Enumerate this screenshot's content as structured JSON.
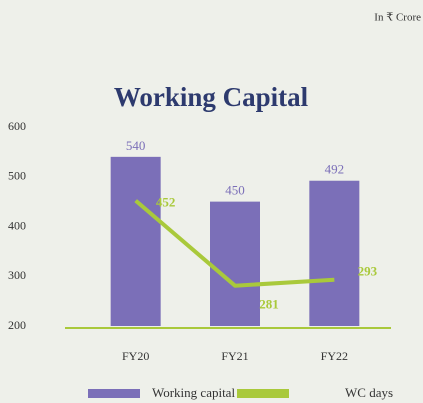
{
  "chart_data": {
    "type": "bar",
    "title": "Working Capital",
    "unit_note": "In ₹ Crore",
    "categories": [
      "FY20",
      "FY21",
      "FY22"
    ],
    "series": [
      {
        "name": "Working capital",
        "type": "bar",
        "color": "#7b6fb8",
        "values": [
          540,
          450,
          492
        ]
      },
      {
        "name": "WC days",
        "type": "line",
        "color": "#a9c93b",
        "values": [
          452,
          281,
          293
        ]
      }
    ],
    "ylim": [
      200,
      600
    ],
    "yticks": [
      200,
      300,
      400,
      500,
      600
    ],
    "grid": false
  }
}
